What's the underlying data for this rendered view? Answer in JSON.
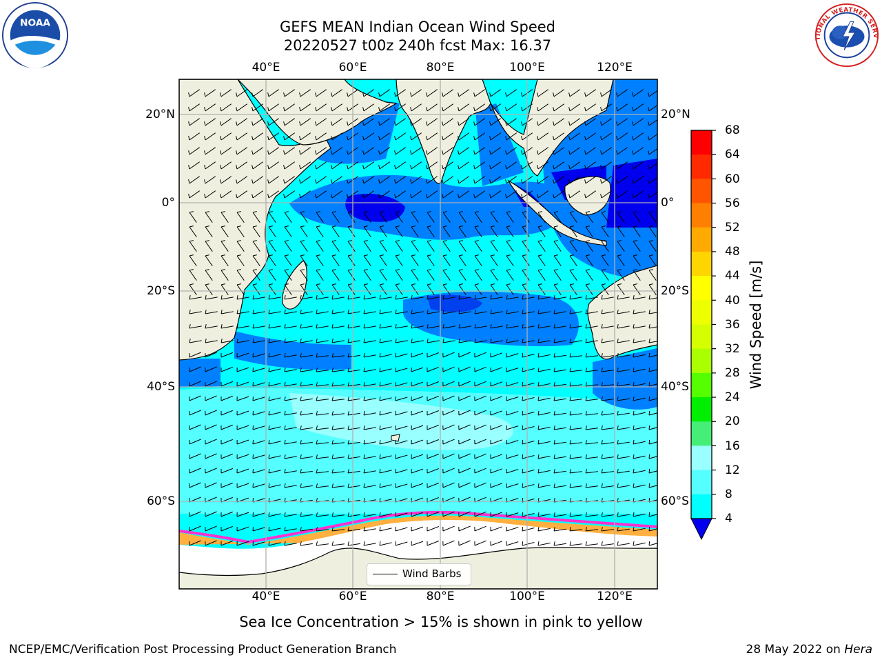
{
  "title": {
    "line1": "GEFS MEAN Indian Ocean Wind Speed",
    "line2": "20220527 t00z 240h fcst   Max: 16.37"
  },
  "logos": {
    "noaa": {
      "icon": "noaa-logo",
      "text": "NOAA",
      "ring_text": "NATIONAL OCEANIC AND ATMOSPHERIC ADMINISTRATION · U.S. DEPARTMENT OF COMMERCE"
    },
    "nws": {
      "icon": "nws-logo",
      "ring_text": "NATIONAL WEATHER SERVICE"
    }
  },
  "map": {
    "lon_ticks": [
      "40°E",
      "60°E",
      "80°E",
      "100°E",
      "120°E"
    ],
    "lat_ticks": [
      "20°N",
      "0°",
      "20°S",
      "40°S",
      "60°S"
    ],
    "land_color": "#efefdf",
    "sea_ice_color": "#ffffff"
  },
  "colorbar": {
    "label": "Wind Speed [m/s]",
    "ticks": [
      "68",
      "64",
      "60",
      "56",
      "52",
      "48",
      "44",
      "40",
      "36",
      "32",
      "28",
      "24",
      "20",
      "16",
      "12",
      "8",
      "4"
    ],
    "colors": [
      "#ff0000",
      "#ff2a00",
      "#ff5500",
      "#ff8000",
      "#ffaa00",
      "#ffd500",
      "#ffff00",
      "#eeff00",
      "#d5ff00",
      "#aaff00",
      "#55ff00",
      "#00ee00",
      "#44ee77",
      "#99ffff",
      "#55ffff",
      "#00ffff",
      "#0080ff"
    ],
    "under_color": "#0000ee"
  },
  "legend": {
    "label": "Wind Barbs"
  },
  "note": "Sea Ice Concentration > 15% is shown in pink to yellow",
  "credits": {
    "left": "NCEP/EMC/Verification Post Processing Product Generation Branch",
    "right_date": "28 May 2022 on ",
    "right_host": "Hera"
  }
}
